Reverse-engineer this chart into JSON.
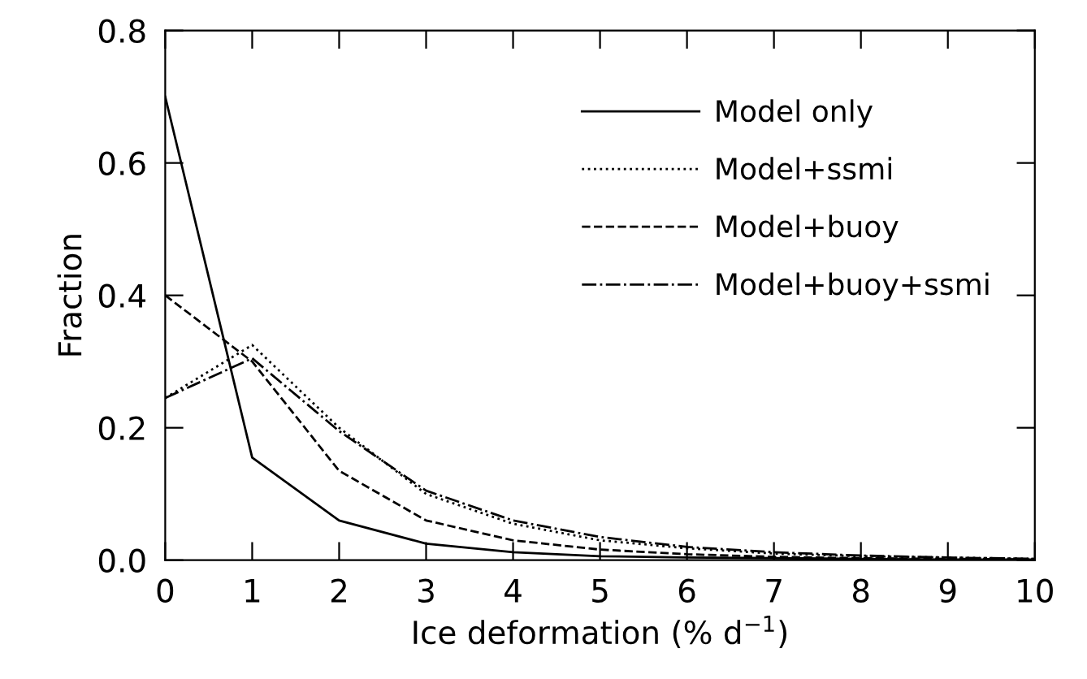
{
  "chart_data": {
    "type": "line",
    "xlabel": "Ice deformation (% d$^{−1}$)",
    "ylabel": "Fraction",
    "x": [
      0,
      1,
      2,
      3,
      4,
      5,
      6,
      7,
      8,
      9,
      10
    ],
    "xlim": [
      0,
      10
    ],
    "xticks": [
      0,
      1,
      2,
      3,
      4,
      5,
      6,
      7,
      8,
      9,
      10
    ],
    "ylim": [
      0,
      0.8
    ],
    "yticks": [
      {
        "value": 0,
        "label": "0.0"
      },
      0.2,
      0.4,
      0.6,
      0.8
    ],
    "grid": false,
    "legend": "top right",
    "marker": "none",
    "series": [
      {
        "name": "Model only",
        "color": "#000000",
        "line_style": "solid",
        "values": [
          0.7,
          0.155,
          0.06,
          0.025,
          0.012,
          0.006,
          0.004,
          0.003,
          0.002,
          0.001,
          0.001
        ]
      },
      {
        "name": "Model+ssmi",
        "color": "#000000",
        "line_style": "dotted",
        "values": [
          0.245,
          0.325,
          0.2,
          0.1,
          0.055,
          0.03,
          0.018,
          0.01,
          0.006,
          0.004,
          0.002
        ]
      },
      {
        "name": "Model+buoy",
        "color": "#000000",
        "line_style": "dashed",
        "values": [
          0.4,
          0.3,
          0.135,
          0.06,
          0.03,
          0.016,
          0.009,
          0.005,
          0.003,
          0.002,
          0.001
        ]
      },
      {
        "name": "Model+buoy+ssmi",
        "color": "#000000",
        "line_style": "dashdot",
        "values": [
          0.245,
          0.305,
          0.195,
          0.105,
          0.06,
          0.035,
          0.02,
          0.012,
          0.007,
          0.004,
          0.002
        ]
      }
    ]
  }
}
